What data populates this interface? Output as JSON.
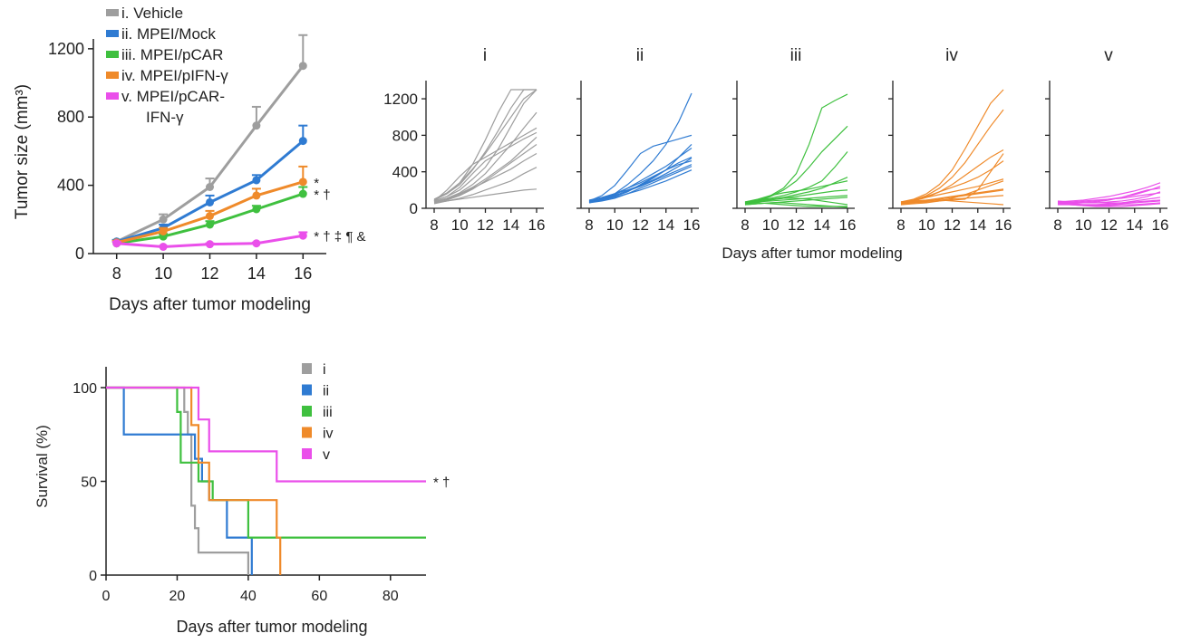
{
  "colors": {
    "i": "#9e9e9e",
    "ii": "#2f7bd2",
    "iii": "#3fc03f",
    "iv": "#ef8a2a",
    "v": "#ea4fea",
    "axis": "#222222"
  },
  "chart_data": [
    {
      "id": "mean_growth",
      "type": "line",
      "xlabel": "Days after tumor modeling",
      "ylabel": "Tumor size (mm³)",
      "x": [
        8,
        10,
        12,
        14,
        16
      ],
      "xlim": [
        7,
        17
      ],
      "ylim": [
        0,
        1300
      ],
      "yticks": [
        0,
        400,
        800,
        1200
      ],
      "legend_position": "top-left",
      "series": [
        {
          "key": "i",
          "name": "i. Vehicle",
          "values": [
            70,
            200,
            390,
            750,
            1100
          ],
          "error": [
            10,
            30,
            50,
            110,
            180
          ]
        },
        {
          "key": "ii",
          "name": "ii. MPEI/Mock",
          "values": [
            70,
            150,
            300,
            430,
            660
          ],
          "error": [
            10,
            20,
            40,
            30,
            90
          ]
        },
        {
          "key": "iii",
          "name": "iii. MPEI/pCAR",
          "values": [
            60,
            100,
            170,
            260,
            350
          ],
          "error": [
            10,
            15,
            20,
            20,
            40
          ]
        },
        {
          "key": "iv",
          "name": "iv. MPEI/pIFN-γ",
          "values": [
            65,
            130,
            220,
            340,
            420
          ],
          "error": [
            10,
            20,
            30,
            40,
            90
          ]
        },
        {
          "key": "v",
          "name": "v. MPEI/pCAR-",
          "name_line2": "IFN-γ",
          "values": [
            60,
            40,
            55,
            60,
            105
          ],
          "error": [
            10,
            5,
            5,
            5,
            20
          ]
        }
      ],
      "annotations": [
        {
          "series": "iv",
          "text": "*"
        },
        {
          "series": "iii",
          "text": "* †"
        },
        {
          "series": "v",
          "text": "* † ‡ ¶ &"
        }
      ]
    },
    {
      "id": "individual_growth",
      "type": "line",
      "xlabel": "Days after tumor modeling",
      "x": [
        8,
        9,
        10,
        11,
        12,
        13,
        14,
        15,
        16
      ],
      "xticks": [
        8,
        10,
        12,
        14,
        16
      ],
      "ylim": [
        0,
        1300
      ],
      "yticks": [
        0,
        400,
        800,
        1200
      ],
      "panels": [
        {
          "key": "i",
          "title": "i",
          "curves": [
            [
              80,
              130,
              200,
              320,
              450,
              650,
              900,
              1150,
              1300
            ],
            [
              90,
              160,
              260,
              420,
              620,
              850,
              1100,
              1300,
              1300
            ],
            [
              70,
              110,
              170,
              260,
              380,
              540,
              700,
              880,
              1050
            ],
            [
              100,
              170,
              280,
              430,
              600,
              800,
              1000,
              1200,
              1300
            ],
            [
              80,
              200,
              350,
              480,
              560,
              640,
              720,
              800,
              880
            ],
            [
              60,
              90,
              140,
              210,
              300,
              400,
              500,
              600,
              700
            ],
            [
              70,
              100,
              150,
              220,
              290,
              360,
              430,
              520,
              600
            ],
            [
              90,
              160,
              280,
              480,
              750,
              1050,
              1300,
              1300,
              1300
            ],
            [
              50,
              80,
              110,
              150,
              200,
              250,
              300,
              380,
              450
            ],
            [
              80,
              130,
              230,
              380,
              520,
              600,
              680,
              760,
              830
            ],
            [
              60,
              80,
              100,
              120,
              140,
              160,
              180,
              200,
              210
            ],
            [
              70,
              110,
              160,
              230,
              320,
              420,
              520,
              650,
              780
            ]
          ]
        },
        {
          "key": "ii",
          "title": "ii",
          "curves": [
            [
              70,
              100,
              160,
              260,
              380,
              520,
              700,
              950,
              1260
            ],
            [
              80,
              140,
              250,
              420,
              600,
              680,
              720,
              760,
              800
            ],
            [
              60,
              100,
              150,
              220,
              300,
              380,
              460,
              560,
              660
            ],
            [
              70,
              90,
              130,
              180,
              260,
              340,
              420,
              500,
              560
            ],
            [
              80,
              110,
              160,
              220,
              280,
              350,
              420,
              480,
              520
            ],
            [
              60,
              80,
              110,
              160,
              220,
              280,
              340,
              400,
              460
            ],
            [
              70,
              100,
              140,
              190,
              240,
              300,
              360,
              420,
              480
            ],
            [
              90,
              120,
              160,
              200,
              250,
              310,
              380,
              460,
              550
            ],
            [
              60,
              90,
              120,
              160,
              200,
              250,
              300,
              360,
              420
            ],
            [
              80,
              100,
              140,
              190,
              250,
              330,
              420,
              560,
              700
            ]
          ]
        },
        {
          "key": "iii",
          "title": "iii",
          "curves": [
            [
              60,
              90,
              140,
              220,
              380,
              700,
              1100,
              1180,
              1250
            ],
            [
              50,
              80,
              130,
              200,
              300,
              450,
              620,
              760,
              900
            ],
            [
              70,
              90,
              110,
              140,
              180,
              230,
              300,
              450,
              620
            ],
            [
              60,
              80,
              100,
              120,
              150,
              180,
              220,
              280,
              340
            ],
            [
              50,
              70,
              90,
              110,
              130,
              150,
              170,
              190,
              200
            ],
            [
              40,
              50,
              60,
              70,
              80,
              90,
              100,
              110,
              120
            ],
            [
              60,
              70,
              80,
              90,
              100,
              110,
              120,
              130,
              140
            ],
            [
              50,
              60,
              50,
              40,
              30,
              20,
              20,
              20,
              20
            ],
            [
              70,
              100,
              140,
              170,
              190,
              210,
              240,
              270,
              300
            ],
            [
              60,
              80,
              100,
              110,
              110,
              100,
              80,
              60,
              40
            ],
            [
              40,
              50,
              60,
              60,
              50,
              40,
              30,
              20,
              10
            ]
          ]
        },
        {
          "key": "iv",
          "title": "iv",
          "curves": [
            [
              60,
              90,
              140,
              220,
              340,
              500,
              700,
              900,
              1080
            ],
            [
              70,
              100,
              160,
              260,
              420,
              650,
              900,
              1150,
              1300
            ],
            [
              50,
              80,
              120,
              180,
              260,
              360,
              460,
              560,
              640
            ],
            [
              60,
              90,
              130,
              180,
              230,
              280,
              340,
              420,
              520
            ],
            [
              70,
              90,
              120,
              150,
              180,
              210,
              240,
              280,
              320
            ],
            [
              50,
              70,
              90,
              110,
              130,
              150,
              170,
              190,
              210
            ],
            [
              40,
              60,
              80,
              100,
              120,
              140,
              160,
              180,
              200
            ],
            [
              60,
              70,
              80,
              90,
              100,
              110,
              120,
              130,
              140
            ],
            [
              50,
              60,
              70,
              80,
              90,
              100,
              200,
              400,
              600
            ],
            [
              70,
              80,
              90,
              90,
              80,
              70,
              60,
              50,
              40
            ],
            [
              40,
              50,
              60,
              80,
              110,
              150,
              200,
              250,
              300
            ]
          ]
        },
        {
          "key": "v",
          "title": "v",
          "curves": [
            [
              70,
              80,
              90,
              110,
              130,
              160,
              190,
              230,
              280
            ],
            [
              60,
              60,
              70,
              80,
              100,
              120,
              150,
              190,
              240
            ],
            [
              50,
              50,
              60,
              60,
              70,
              80,
              100,
              130,
              180
            ],
            [
              60,
              50,
              40,
              40,
              50,
              60,
              80,
              100,
              120
            ],
            [
              80,
              70,
              60,
              60,
              60,
              60,
              70,
              80,
              90
            ],
            [
              50,
              40,
              30,
              30,
              30,
              40,
              40,
              50,
              60
            ],
            [
              70,
              60,
              60,
              70,
              90,
              120,
              160,
              200,
              220
            ],
            [
              40,
              40,
              40,
              40,
              40,
              50,
              60,
              70,
              80
            ],
            [
              60,
              70,
              80,
              90,
              100,
              110,
              130,
              150,
              170
            ],
            [
              50,
              40,
              30,
              20,
              20,
              20,
              30,
              40,
              50
            ]
          ]
        }
      ]
    },
    {
      "id": "survival",
      "type": "line",
      "step": true,
      "xlabel": "Days after tumor modeling",
      "ylabel": "Survival (%)",
      "xlim": [
        0,
        90
      ],
      "xticks": [
        0,
        20,
        40,
        60,
        80
      ],
      "ylim": [
        0,
        110
      ],
      "yticks": [
        0,
        50,
        100
      ],
      "legend_position": "top-right",
      "series": [
        {
          "key": "i",
          "name": "i",
          "points": [
            [
              0,
              100
            ],
            [
              22,
              100
            ],
            [
              22,
              87
            ],
            [
              23,
              87
            ],
            [
              23,
              75
            ],
            [
              24,
              75
            ],
            [
              24,
              37
            ],
            [
              25,
              37
            ],
            [
              25,
              25
            ],
            [
              26,
              25
            ],
            [
              26,
              12
            ],
            [
              40,
              12
            ],
            [
              40,
              0
            ]
          ]
        },
        {
          "key": "ii",
          "name": "ii",
          "points": [
            [
              0,
              100
            ],
            [
              5,
              100
            ],
            [
              5,
              75
            ],
            [
              25,
              75
            ],
            [
              25,
              62
            ],
            [
              27,
              62
            ],
            [
              27,
              50
            ],
            [
              29,
              50
            ],
            [
              29,
              40
            ],
            [
              34,
              40
            ],
            [
              34,
              20
            ],
            [
              41,
              20
            ],
            [
              41,
              0
            ]
          ]
        },
        {
          "key": "iii",
          "name": "iii",
          "points": [
            [
              0,
              100
            ],
            [
              20,
              100
            ],
            [
              20,
              87
            ],
            [
              21,
              87
            ],
            [
              21,
              60
            ],
            [
              26,
              60
            ],
            [
              26,
              50
            ],
            [
              30,
              50
            ],
            [
              30,
              40
            ],
            [
              40,
              40
            ],
            [
              40,
              20
            ],
            [
              90,
              20
            ]
          ]
        },
        {
          "key": "iv",
          "name": "iv",
          "points": [
            [
              0,
              100
            ],
            [
              24,
              100
            ],
            [
              24,
              80
            ],
            [
              26,
              80
            ],
            [
              26,
              60
            ],
            [
              29,
              60
            ],
            [
              29,
              40
            ],
            [
              48,
              40
            ],
            [
              48,
              20
            ],
            [
              49,
              20
            ],
            [
              49,
              0
            ]
          ]
        },
        {
          "key": "v",
          "name": "v",
          "points": [
            [
              0,
              100
            ],
            [
              26,
              100
            ],
            [
              26,
              83
            ],
            [
              29,
              83
            ],
            [
              29,
              66
            ],
            [
              48,
              66
            ],
            [
              48,
              50
            ],
            [
              90,
              50
            ]
          ]
        }
      ],
      "annotations": [
        {
          "series": "v",
          "text": "* †"
        }
      ]
    }
  ]
}
